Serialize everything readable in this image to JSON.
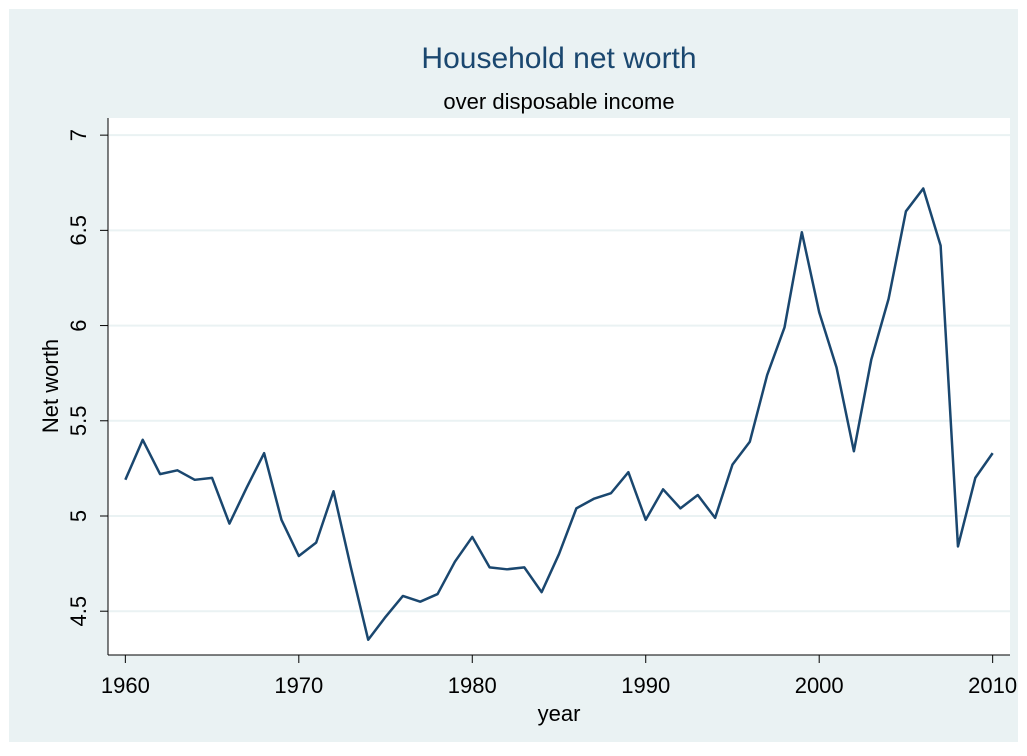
{
  "chart_data": {
    "type": "line",
    "title": "Household net worth",
    "subtitle": "over disposable income",
    "x_label": "year",
    "y_label": "Net worth",
    "x": [
      1960,
      1961,
      1962,
      1963,
      1964,
      1965,
      1966,
      1967,
      1968,
      1969,
      1970,
      1971,
      1972,
      1973,
      1974,
      1975,
      1976,
      1977,
      1978,
      1979,
      1980,
      1981,
      1982,
      1983,
      1984,
      1985,
      1986,
      1987,
      1988,
      1989,
      1990,
      1991,
      1992,
      1993,
      1994,
      1995,
      1996,
      1997,
      1998,
      1999,
      2000,
      2001,
      2002,
      2003,
      2004,
      2005,
      2006,
      2007,
      2008,
      2009,
      2010
    ],
    "series": [
      {
        "name": "Net worth",
        "color": "#1a476f",
        "values": [
          5.19,
          5.4,
          5.22,
          5.24,
          5.19,
          5.2,
          4.96,
          5.15,
          5.33,
          4.98,
          4.79,
          4.86,
          5.13,
          4.73,
          4.35,
          4.47,
          4.58,
          4.55,
          4.59,
          4.76,
          4.89,
          4.73,
          4.72,
          4.73,
          4.6,
          4.8,
          5.04,
          5.09,
          5.12,
          5.23,
          4.98,
          5.14,
          5.04,
          5.11,
          4.99,
          5.27,
          5.39,
          5.74,
          5.99,
          6.49,
          6.07,
          5.78,
          5.34,
          5.82,
          6.14,
          6.6,
          6.72,
          6.42,
          4.84,
          5.2,
          5.33
        ]
      }
    ],
    "xlim": [
      1959,
      2011
    ],
    "xticks": [
      1960,
      1970,
      1980,
      1990,
      2000,
      2010
    ],
    "ylim": [
      4.27,
      7.09
    ],
    "yticks": [
      4.5,
      5,
      5.5,
      6,
      6.5,
      7
    ],
    "grid": true
  }
}
